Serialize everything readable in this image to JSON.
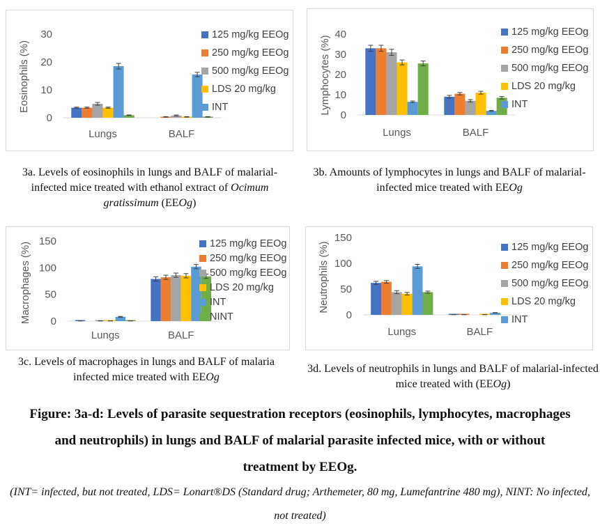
{
  "colors": {
    "125": "#4472c4",
    "250": "#ed7d31",
    "500": "#a5a5a5",
    "LDS": "#ffc000",
    "INT": "#5b9bd5",
    "NINT": "#70ad47"
  },
  "chart_data": [
    {
      "id": "3a",
      "type": "bar",
      "ylabel": "Eosinophils (%)",
      "ylim": [
        0,
        30
      ],
      "yticks": [
        0,
        10,
        20,
        30
      ],
      "categories": [
        "Lungs",
        "BALF"
      ],
      "legend_entries": [
        "125 mg/kg EEOg",
        "250 mg/kg EEOg",
        "500 mg/kg EEOg",
        "LDS 20 mg/kg",
        "INT"
      ],
      "legend_position": "right",
      "series": [
        {
          "name": "125 mg/kg EEOg",
          "key": "125",
          "values": [
            3.6,
            0
          ],
          "errors": [
            0.2,
            0
          ]
        },
        {
          "name": "250 mg/kg EEOg",
          "key": "250",
          "values": [
            3.6,
            0.3
          ],
          "errors": [
            0.2,
            0.1
          ]
        },
        {
          "name": "500 mg/kg EEOg",
          "key": "500",
          "values": [
            5.0,
            0.8
          ],
          "errors": [
            0.5,
            0.2
          ]
        },
        {
          "name": "LDS 20 mg/kg",
          "key": "LDS",
          "values": [
            3.6,
            0.3
          ],
          "errors": [
            0.2,
            0.1
          ]
        },
        {
          "name": "INT",
          "key": "INT",
          "values": [
            18.5,
            15.5
          ],
          "errors": [
            1.0,
            0.8
          ]
        },
        {
          "name": "NINT",
          "key": "NINT",
          "values": [
            0.9,
            0.3
          ],
          "errors": [
            0.1,
            0.1
          ]
        }
      ]
    },
    {
      "id": "3b",
      "type": "bar",
      "ylabel": "Lymphocytes (%)",
      "ylim": [
        0,
        40
      ],
      "yticks": [
        0,
        10,
        20,
        30,
        40
      ],
      "categories": [
        "Lungs",
        "BALF"
      ],
      "legend_entries": [
        "125 mg/kg EEOg",
        "250 mg/kg EEOg",
        "500 mg/kg EEOg",
        "LDS 20 mg/kg",
        "INT"
      ],
      "legend_position": "right",
      "series": [
        {
          "name": "125 mg/kg EEOg",
          "key": "125",
          "values": [
            33,
            9
          ],
          "errors": [
            1.5,
            0.7
          ]
        },
        {
          "name": "250 mg/kg EEOg",
          "key": "250",
          "values": [
            33,
            10.5
          ],
          "errors": [
            1.5,
            0.6
          ]
        },
        {
          "name": "500 mg/kg EEOg",
          "key": "500",
          "values": [
            31,
            7
          ],
          "errors": [
            1.5,
            0.6
          ]
        },
        {
          "name": "LDS 20 mg/kg",
          "key": "LDS",
          "values": [
            26,
            11
          ],
          "errors": [
            1.2,
            0.7
          ]
        },
        {
          "name": "INT",
          "key": "INT",
          "values": [
            6.5,
            2
          ],
          "errors": [
            0.4,
            0.2
          ]
        },
        {
          "name": "NINT",
          "key": "NINT",
          "values": [
            25.5,
            8.5
          ],
          "errors": [
            1.2,
            0.6
          ]
        }
      ]
    },
    {
      "id": "3c",
      "type": "bar",
      "ylabel": "Macrophages (%)",
      "ylim": [
        0,
        150
      ],
      "yticks": [
        0,
        50,
        100,
        150
      ],
      "categories": [
        "Lungs",
        "BALF"
      ],
      "legend_entries": [
        "125 mg/kg EEOg",
        "250 mg/kg EEOg",
        "500 mg/kg EEOg",
        "LDS 20 mg/kg",
        "INT",
        "NINT"
      ],
      "legend_position": "right",
      "series": [
        {
          "name": "125 mg/kg EEOg",
          "key": "125",
          "values": [
            0.5,
            79
          ],
          "errors": [
            0.2,
            4
          ]
        },
        {
          "name": "250 mg/kg EEOg",
          "key": "250",
          "values": [
            0,
            82
          ],
          "errors": [
            0,
            4
          ]
        },
        {
          "name": "500 mg/kg EEOg",
          "key": "500",
          "values": [
            0.5,
            86
          ],
          "errors": [
            0.2,
            4
          ]
        },
        {
          "name": "LDS 20 mg/kg",
          "key": "LDS",
          "values": [
            0.5,
            85
          ],
          "errors": [
            0.2,
            4
          ]
        },
        {
          "name": "INT",
          "key": "INT",
          "values": [
            8,
            102
          ],
          "errors": [
            0.8,
            4
          ]
        },
        {
          "name": "NINT",
          "key": "NINT",
          "values": [
            0.5,
            84
          ],
          "errors": [
            0.2,
            4
          ]
        }
      ]
    },
    {
      "id": "3d",
      "type": "bar",
      "ylabel": "Neutrophils (%)",
      "ylim": [
        0,
        150
      ],
      "yticks": [
        0,
        50,
        100,
        150
      ],
      "categories": [
        "Lungs",
        "BALF"
      ],
      "legend_entries": [
        "125 mg/kg EEOg",
        "250 mg/kg EEOg",
        "500 mg/kg EEOg",
        "LDS 20 mg/kg",
        "INT"
      ],
      "legend_position": "right",
      "series": [
        {
          "name": "125 mg/kg EEOg",
          "key": "125",
          "values": [
            62,
            0.5
          ],
          "errors": [
            3,
            0.2
          ]
        },
        {
          "name": "250 mg/kg EEOg",
          "key": "250",
          "values": [
            64,
            0.5
          ],
          "errors": [
            2.5,
            0.2
          ]
        },
        {
          "name": "500 mg/kg EEOg",
          "key": "500",
          "values": [
            44,
            0
          ],
          "errors": [
            3,
            0
          ]
        },
        {
          "name": "LDS 20 mg/kg",
          "key": "LDS",
          "values": [
            41,
            0.5
          ],
          "errors": [
            2.5,
            0.2
          ]
        },
        {
          "name": "INT",
          "key": "INT",
          "values": [
            94,
            4
          ],
          "errors": [
            4,
            0.4
          ]
        },
        {
          "name": "NINT",
          "key": "NINT",
          "values": [
            44,
            0
          ],
          "errors": [
            2,
            0
          ]
        }
      ]
    }
  ],
  "captions": {
    "a_pre": "3a. Levels of eosinophils in lungs and BALF of malarial-infected mice treated with ethanol extract of ",
    "a_italic": "Ocimum gratissimum",
    "a_post": " (EE",
    "a_italic2": "Og",
    "a_end": ")",
    "b_pre": "3b. Amounts of lymphocytes in lungs and BALF of malarial-infected mice treated with EE",
    "b_italic": "Og",
    "c_pre": "3c. Levels of macrophages in lungs and BALF of malaria infected mice treated with EE",
    "c_italic": "Og",
    "d_pre": "3d. Levels of neutrophils in lungs and BALF of malarial-infected mice treated with (EE",
    "d_italic": "Og",
    "d_end": ")"
  },
  "figure": {
    "title": "Figure: 3a-d: Levels of parasite sequestration receptors (eosinophils, lymphocytes, macrophages and neutrophils) in lungs and BALF of malarial parasite infected mice, with or without treatment by EEOg.",
    "note": "(INT= infected, but not treated, LDS= Lonart®DS (Standard drug; Arthemeter, 80 mg, Lumefantrine 480 mg), NINT: No infected, not treated)"
  }
}
